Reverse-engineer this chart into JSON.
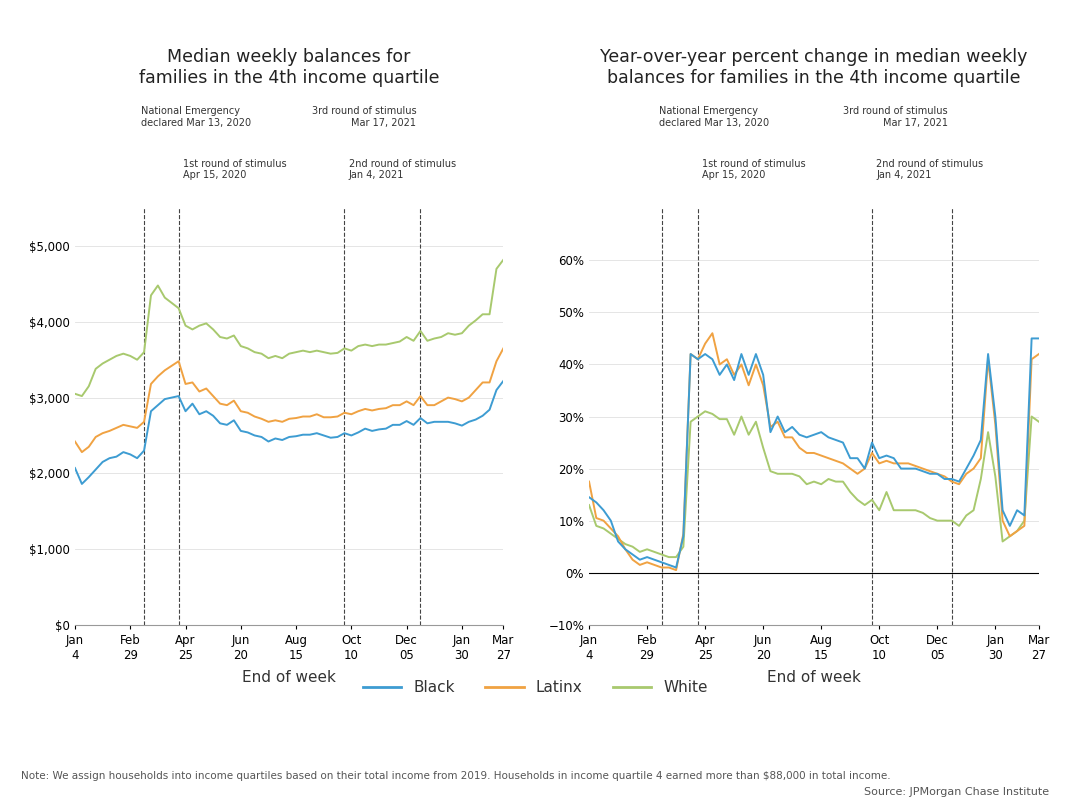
{
  "title1": "Median weekly balances for\nfamilies in the 4th income quartile",
  "title2": "Year-over-year percent change in median weekly\nbalances for families in the 4th income quartile",
  "xlabel": "End of week",
  "legend_labels": [
    "Black",
    "Latinx",
    "White"
  ],
  "colors": [
    "#3d9cd2",
    "#f0a242",
    "#a8c96e"
  ],
  "note": "Note: We assign households into income quartiles based on their total income from 2019. Households in income quartile 4 earned more than $88,000 in total income.",
  "source": "Source: JPMorgan Chase Institute",
  "vline_positions": [
    10,
    15,
    39,
    50
  ],
  "xtick_labels": [
    "Jan\n4",
    "Feb\n29",
    "Apr\n25",
    "Jun\n20",
    "Aug\n15",
    "Oct\n10",
    "Dec\n05",
    "Jan\n30",
    "Mar\n27"
  ],
  "xtick_positions": [
    0,
    8,
    16,
    24,
    32,
    40,
    48,
    56,
    62
  ],
  "n_points": 63,
  "plot1_ylim": [
    0,
    5500
  ],
  "plot1_yticks": [
    0,
    1000,
    2000,
    3000,
    4000,
    5000
  ],
  "plot2_ylim": [
    -0.1,
    0.7
  ],
  "plot2_yticks": [
    -0.1,
    0.0,
    0.1,
    0.2,
    0.3,
    0.4,
    0.5,
    0.6
  ],
  "black_bal": [
    2070,
    1860,
    1950,
    2050,
    2150,
    2200,
    2220,
    2280,
    2250,
    2200,
    2300,
    2820,
    2900,
    2980,
    3000,
    3020,
    2820,
    2920,
    2780,
    2820,
    2760,
    2660,
    2640,
    2700,
    2560,
    2540,
    2500,
    2480,
    2420,
    2460,
    2440,
    2480,
    2490,
    2510,
    2510,
    2530,
    2500,
    2470,
    2480,
    2530,
    2500,
    2540,
    2590,
    2560,
    2580,
    2590,
    2640,
    2640,
    2690,
    2640,
    2730,
    2660,
    2680,
    2680,
    2680,
    2660,
    2630,
    2680,
    2710,
    2760,
    2840,
    3100,
    3220
  ],
  "latinx_bal": [
    2420,
    2280,
    2350,
    2480,
    2530,
    2560,
    2600,
    2640,
    2620,
    2600,
    2680,
    3180,
    3280,
    3360,
    3420,
    3480,
    3180,
    3200,
    3080,
    3120,
    3020,
    2920,
    2900,
    2960,
    2820,
    2800,
    2750,
    2720,
    2680,
    2700,
    2680,
    2720,
    2730,
    2750,
    2750,
    2780,
    2740,
    2740,
    2750,
    2800,
    2780,
    2820,
    2850,
    2830,
    2850,
    2860,
    2900,
    2900,
    2950,
    2900,
    3020,
    2900,
    2900,
    2950,
    3000,
    2980,
    2950,
    3000,
    3100,
    3200,
    3200,
    3480,
    3650
  ],
  "white_bal": [
    3050,
    3020,
    3150,
    3380,
    3450,
    3500,
    3550,
    3580,
    3550,
    3500,
    3600,
    4350,
    4480,
    4320,
    4250,
    4180,
    3950,
    3900,
    3950,
    3980,
    3900,
    3800,
    3780,
    3820,
    3680,
    3650,
    3600,
    3580,
    3520,
    3550,
    3520,
    3580,
    3600,
    3620,
    3600,
    3620,
    3600,
    3580,
    3590,
    3650,
    3620,
    3680,
    3700,
    3680,
    3700,
    3700,
    3720,
    3740,
    3800,
    3750,
    3880,
    3750,
    3780,
    3800,
    3850,
    3830,
    3850,
    3950,
    4020,
    4100,
    4100,
    4700,
    4820
  ],
  "black_pct": [
    0.145,
    0.135,
    0.12,
    0.1,
    0.06,
    0.045,
    0.035,
    0.025,
    0.03,
    0.025,
    0.02,
    0.015,
    0.01,
    0.07,
    0.42,
    0.41,
    0.42,
    0.41,
    0.38,
    0.4,
    0.37,
    0.42,
    0.38,
    0.42,
    0.38,
    0.27,
    0.3,
    0.27,
    0.28,
    0.265,
    0.26,
    0.265,
    0.27,
    0.26,
    0.255,
    0.25,
    0.22,
    0.22,
    0.2,
    0.25,
    0.22,
    0.225,
    0.22,
    0.2,
    0.2,
    0.2,
    0.195,
    0.19,
    0.19,
    0.18,
    0.18,
    0.175,
    0.2,
    0.225,
    0.255,
    0.42,
    0.3,
    0.12,
    0.09,
    0.12,
    0.11,
    0.45,
    0.45
  ],
  "latinx_pct": [
    0.175,
    0.105,
    0.1,
    0.085,
    0.07,
    0.045,
    0.025,
    0.015,
    0.02,
    0.015,
    0.01,
    0.01,
    0.005,
    0.075,
    0.42,
    0.41,
    0.44,
    0.46,
    0.4,
    0.41,
    0.38,
    0.4,
    0.36,
    0.4,
    0.36,
    0.28,
    0.29,
    0.26,
    0.26,
    0.24,
    0.23,
    0.23,
    0.225,
    0.22,
    0.215,
    0.21,
    0.2,
    0.19,
    0.2,
    0.23,
    0.21,
    0.215,
    0.21,
    0.21,
    0.21,
    0.205,
    0.2,
    0.195,
    0.19,
    0.185,
    0.175,
    0.17,
    0.19,
    0.2,
    0.22,
    0.41,
    0.285,
    0.1,
    0.07,
    0.08,
    0.09,
    0.41,
    0.42
  ],
  "white_pct": [
    0.13,
    0.09,
    0.085,
    0.075,
    0.065,
    0.055,
    0.05,
    0.04,
    0.045,
    0.04,
    0.035,
    0.03,
    0.03,
    0.05,
    0.29,
    0.3,
    0.31,
    0.305,
    0.295,
    0.295,
    0.265,
    0.3,
    0.265,
    0.29,
    0.24,
    0.195,
    0.19,
    0.19,
    0.19,
    0.185,
    0.17,
    0.175,
    0.17,
    0.18,
    0.175,
    0.175,
    0.155,
    0.14,
    0.13,
    0.14,
    0.12,
    0.155,
    0.12,
    0.12,
    0.12,
    0.12,
    0.115,
    0.105,
    0.1,
    0.1,
    0.1,
    0.09,
    0.11,
    0.12,
    0.18,
    0.27,
    0.185,
    0.06,
    0.07,
    0.08,
    0.1,
    0.3,
    0.29
  ],
  "ann1_label": "National Emergency\ndeclared Mar 13, 2020",
  "ann2_label": "1st round of stimulus\nApr 15, 2020",
  "ann3_label": "2nd round of stimulus\nJan 4, 2021",
  "ann4_label": "3rd round of stimulus\nMar 17, 2021"
}
